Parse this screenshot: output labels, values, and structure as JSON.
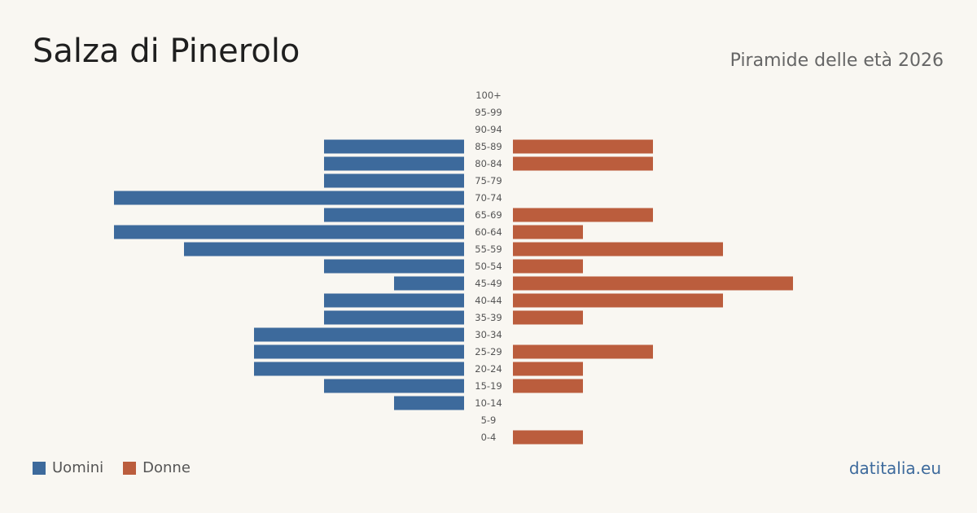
{
  "header": {
    "title": "Salza di Pinerolo",
    "subtitle": "Piramide delle età 2026"
  },
  "legend": {
    "men_label": "Uomini",
    "women_label": "Donne"
  },
  "brand": "datitalia.eu",
  "colors": {
    "men": "#3d6a9c",
    "women": "#bb5d3d",
    "tick_text": "#555555",
    "background": "#f9f7f2"
  },
  "chart_data": {
    "type": "bar",
    "orientation": "horizontal-pyramid",
    "categories": [
      "100+",
      "95-99",
      "90-94",
      "85-89",
      "80-84",
      "75-79",
      "70-74",
      "65-69",
      "60-64",
      "55-59",
      "50-54",
      "45-49",
      "40-44",
      "35-39",
      "30-34",
      "25-29",
      "20-24",
      "15-19",
      "10-14",
      "5-9",
      "0-4"
    ],
    "series": [
      {
        "name": "Uomini",
        "values": [
          0,
          0,
          0,
          2,
          2,
          2,
          5,
          2,
          5,
          4,
          2,
          1,
          2,
          2,
          3,
          3,
          3,
          2,
          1,
          0,
          0
        ]
      },
      {
        "name": "Donne",
        "values": [
          0,
          0,
          0,
          2,
          2,
          0,
          0,
          2,
          1,
          3,
          1,
          4,
          3,
          1,
          0,
          2,
          1,
          1,
          0,
          0,
          1
        ]
      }
    ],
    "grid": false,
    "legend_position": "bottom-left"
  }
}
